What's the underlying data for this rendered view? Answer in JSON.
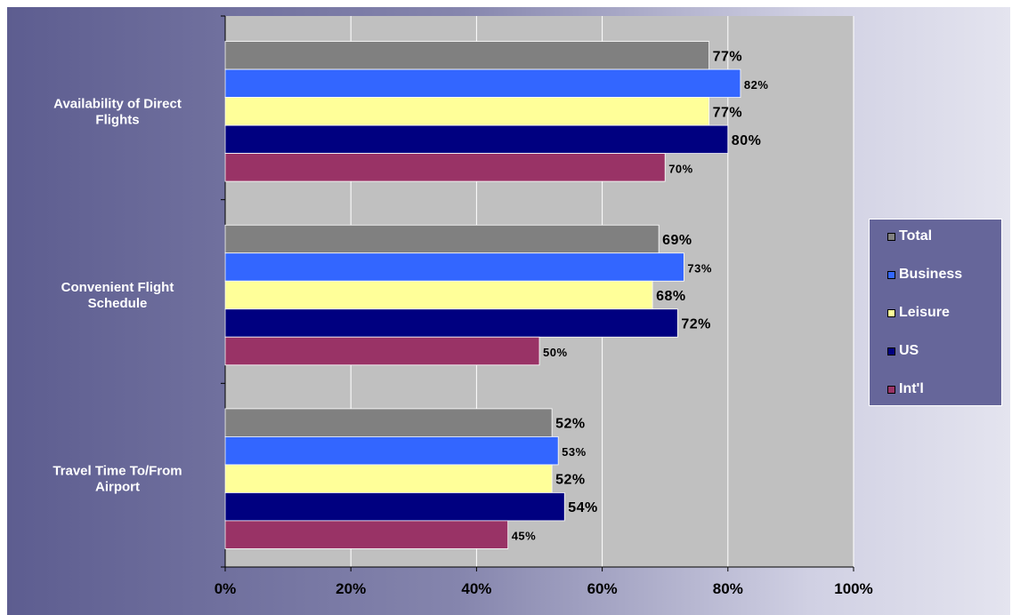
{
  "chart_data": {
    "type": "bar",
    "orientation": "horizontal",
    "categories": [
      "Availability of Direct Flights",
      "Convenient Flight Schedule",
      "Travel Time To/From Airport"
    ],
    "series": [
      {
        "name": "Total",
        "color": "#808080",
        "values": [
          77,
          69,
          52
        ]
      },
      {
        "name": "Business",
        "color": "#3366ff",
        "values": [
          82,
          73,
          53
        ]
      },
      {
        "name": "Leisure",
        "color": "#ffff99",
        "values": [
          77,
          68,
          52
        ]
      },
      {
        "name": "US",
        "color": "#000080",
        "values": [
          80,
          72,
          54
        ]
      },
      {
        "name": "Int'l",
        "color": "#993366",
        "values": [
          70,
          50,
          45
        ]
      }
    ],
    "value_labels": [
      [
        "77%",
        "69%",
        "52%"
      ],
      [
        "82%",
        "73%",
        "53%"
      ],
      [
        "77%",
        "68%",
        "52%"
      ],
      [
        "80%",
        "72%",
        "54%"
      ],
      [
        "70%",
        "50%",
        "45%"
      ]
    ],
    "x_ticks": [
      "0%",
      "20%",
      "40%",
      "60%",
      "80%",
      "100%"
    ],
    "xlim": [
      0,
      100
    ],
    "grid": true,
    "legend_position": "right",
    "plot_background": "#c0c0c0"
  }
}
